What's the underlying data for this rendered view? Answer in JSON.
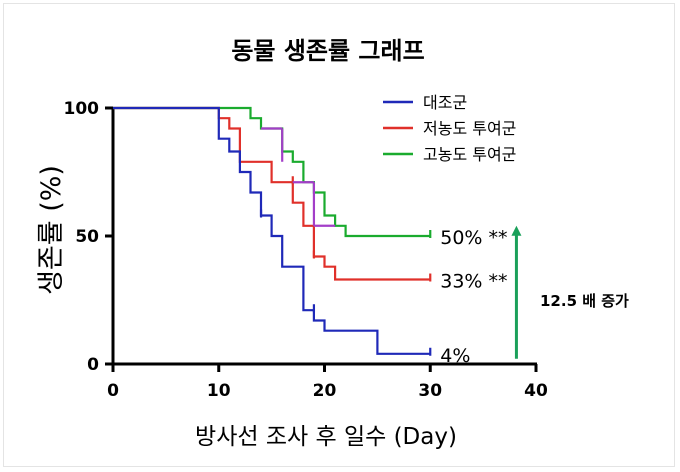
{
  "chart_data": {
    "type": "line",
    "step": true,
    "title": "동물 생존률 그래프",
    "xlabel": "방사선 조사 후 일수 (Day)",
    "ylabel": "생존률 (%)",
    "xlim": [
      0,
      40
    ],
    "ylim": [
      0,
      100
    ],
    "xticks": [
      "0",
      "10",
      "20",
      "30",
      "40"
    ],
    "yticks": [
      "0",
      "50",
      "100"
    ],
    "grid": false,
    "legend_position": "top-right",
    "series": [
      {
        "name": "대조군",
        "color": "#1f29b8",
        "end_label": "4%",
        "points": [
          [
            0,
            100
          ],
          [
            10,
            100
          ],
          [
            10,
            88
          ],
          [
            11,
            88
          ],
          [
            11,
            83
          ],
          [
            12,
            83
          ],
          [
            12,
            75
          ],
          [
            13,
            75
          ],
          [
            13,
            67
          ],
          [
            14,
            67
          ],
          [
            14,
            58
          ],
          [
            15,
            58
          ],
          [
            15,
            50
          ],
          [
            16,
            50
          ],
          [
            16,
            38
          ],
          [
            18,
            38
          ],
          [
            18,
            21
          ],
          [
            19,
            21
          ],
          [
            19,
            17
          ],
          [
            20,
            17
          ],
          [
            20,
            13
          ],
          [
            25,
            13
          ],
          [
            25,
            4
          ],
          [
            30,
            4
          ]
        ],
        "censored": [
          [
            14,
            58
          ],
          [
            19,
            21
          ],
          [
            30,
            4
          ]
        ]
      },
      {
        "name": "저농도 투여군",
        "color": "#e0302a",
        "end_label": "33% **",
        "points": [
          [
            0,
            100
          ],
          [
            10,
            100
          ],
          [
            10,
            96
          ],
          [
            11,
            96
          ],
          [
            11,
            92
          ],
          [
            12,
            92
          ],
          [
            12,
            79
          ],
          [
            15,
            79
          ],
          [
            15,
            71
          ],
          [
            17,
            71
          ],
          [
            17,
            63
          ],
          [
            18,
            63
          ],
          [
            18,
            54
          ],
          [
            19,
            54
          ],
          [
            19,
            42
          ],
          [
            20,
            42
          ],
          [
            20,
            38
          ],
          [
            21,
            38
          ],
          [
            21,
            33
          ],
          [
            30,
            33
          ]
        ],
        "censored": [
          [
            17,
            71
          ],
          [
            19,
            42
          ],
          [
            30,
            33
          ]
        ]
      },
      {
        "name": "고농도 투여군",
        "color": "#1aab2e",
        "end_label": "50% **",
        "points": [
          [
            0,
            100
          ],
          [
            13,
            100
          ],
          [
            13,
            96
          ],
          [
            14,
            96
          ],
          [
            14,
            92
          ],
          [
            16,
            92
          ],
          [
            16,
            83
          ],
          [
            17,
            83
          ],
          [
            17,
            79
          ],
          [
            18,
            79
          ],
          [
            18,
            71
          ],
          [
            19,
            71
          ],
          [
            19,
            67
          ],
          [
            20,
            67
          ],
          [
            20,
            58
          ],
          [
            21,
            58
          ],
          [
            21,
            54
          ],
          [
            22,
            54
          ],
          [
            22,
            50
          ],
          [
            30,
            50
          ]
        ],
        "censored": [
          [
            30,
            50
          ]
        ]
      }
    ],
    "overlap_color": "#a33ec8",
    "annotation": {
      "text": "12.5 배 증가",
      "color": "#1aa05a",
      "arrow_x": 39,
      "arrow_from": 4,
      "arrow_to": 54
    }
  }
}
